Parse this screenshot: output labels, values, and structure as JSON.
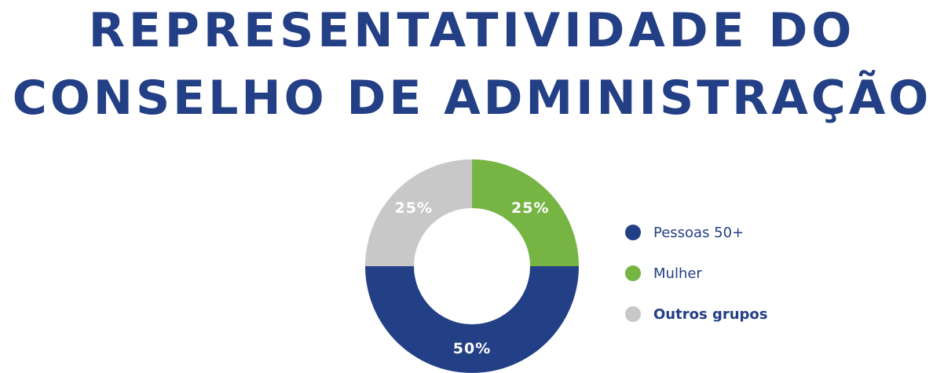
{
  "chart_data": {
    "type": "pie",
    "title_lines": [
      "REPRESENTATIVIDADE DO",
      "CONSELHO DE ADMINISTRAÇÃO"
    ],
    "slices": [
      {
        "name": "Pessoas 50+",
        "value": 50,
        "label": "50%",
        "color": "#233f85"
      },
      {
        "name": "Mulher",
        "value": 25,
        "label": "25%",
        "color": "#76b544"
      },
      {
        "name": "Outros grupos",
        "value": 25,
        "label": "25%",
        "color": "#c8c8c8"
      }
    ],
    "donut": true,
    "legend_position": "right"
  }
}
